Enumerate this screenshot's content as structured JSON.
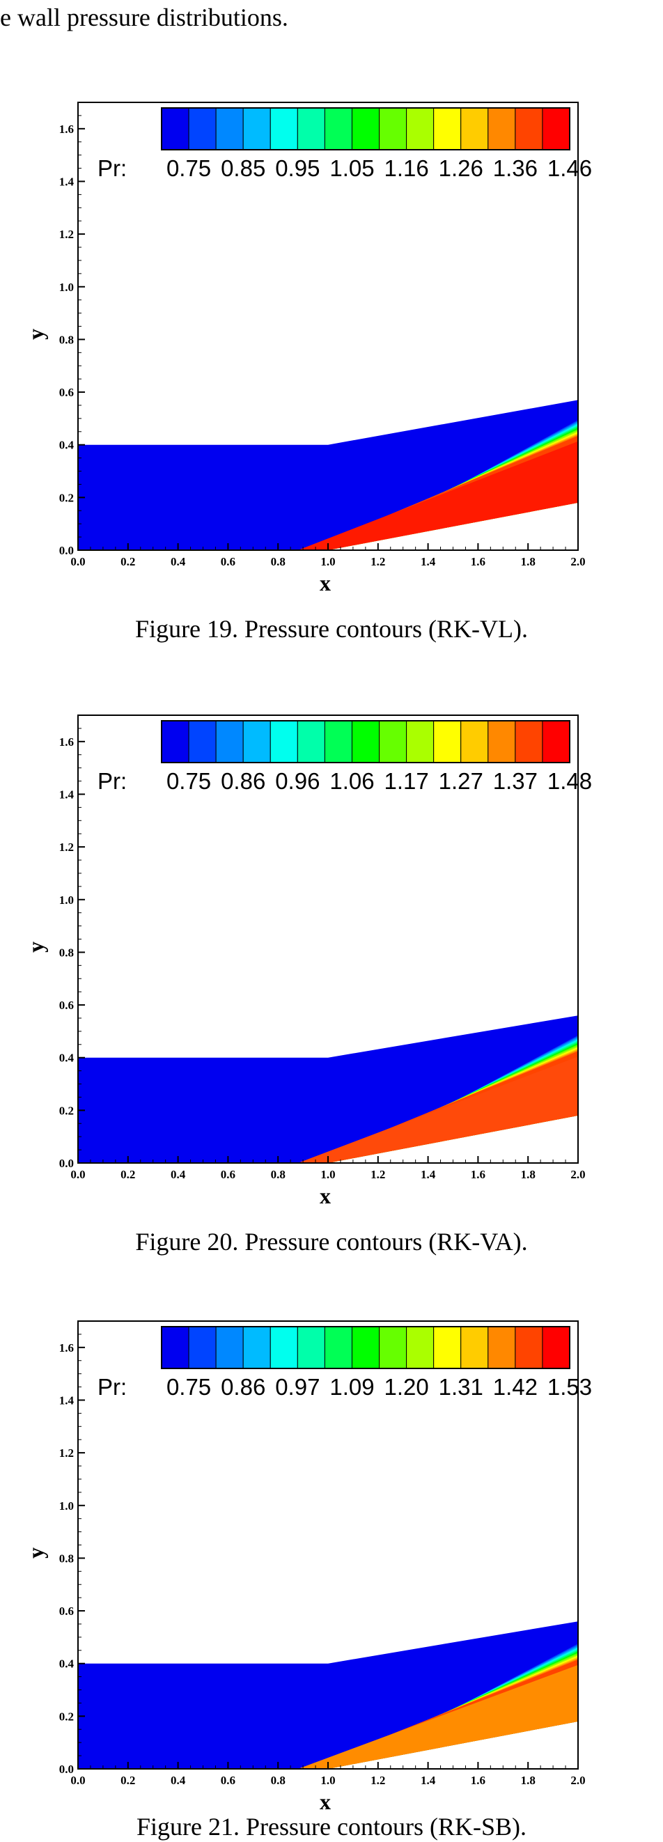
{
  "intro_text": "e wall pressure distributions.",
  "chart_data": [
    {
      "type": "heatmap",
      "caption": "Figure 19. Pressure contours (RK-VL).",
      "xlabel": "x",
      "ylabel": "y",
      "xlim": [
        0.0,
        2.0
      ],
      "ylim": [
        0.0,
        1.7
      ],
      "x_ticks": [
        "0.0",
        "0.2",
        "0.4",
        "0.6",
        "0.8",
        "1.0",
        "1.2",
        "1.4",
        "1.6",
        "1.8",
        "2.0"
      ],
      "y_ticks": [
        "0.0",
        "0.2",
        "0.4",
        "0.6",
        "0.8",
        "1.0",
        "1.2",
        "1.4",
        "1.6"
      ],
      "legend": {
        "label": "Pr:",
        "placement": "top",
        "levels": [
          "0.75",
          "0.85",
          "0.95",
          "1.05",
          "1.16",
          "1.26",
          "1.36",
          "1.46"
        ]
      },
      "colors": [
        "#0000f0",
        "#0044ff",
        "#0088ff",
        "#00bbff",
        "#00ffee",
        "#00ffaa",
        "#00ff55",
        "#00ff00",
        "#66ff00",
        "#aaff00",
        "#ffff00",
        "#ffcc00",
        "#ff8800",
        "#ff4400",
        "#ff0000"
      ],
      "domain": {
        "inlet_height": 0.4,
        "ramp_start_x": 1.0,
        "top_outlet_y": 0.57,
        "bottom_outlet_y": 0.18
      },
      "shock": {
        "start_x": 1.0,
        "outlet_y": 0.52
      },
      "post_shock_color": "#ff1a00",
      "pre_shock_color": "#0000f0"
    },
    {
      "type": "heatmap",
      "caption": "Figure 20. Pressure contours (RK-VA).",
      "xlabel": "x",
      "ylabel": "y",
      "xlim": [
        0.0,
        2.0
      ],
      "ylim": [
        0.0,
        1.7
      ],
      "x_ticks": [
        "0.0",
        "0.2",
        "0.4",
        "0.6",
        "0.8",
        "1.0",
        "1.2",
        "1.4",
        "1.6",
        "1.8",
        "2.0"
      ],
      "y_ticks": [
        "0.0",
        "0.2",
        "0.4",
        "0.6",
        "0.8",
        "1.0",
        "1.2",
        "1.4",
        "1.6"
      ],
      "legend": {
        "label": "Pr:",
        "placement": "top",
        "levels": [
          "0.75",
          "0.86",
          "0.96",
          "1.06",
          "1.17",
          "1.27",
          "1.37",
          "1.48"
        ]
      },
      "colors": [
        "#0000f0",
        "#0044ff",
        "#0088ff",
        "#00bbff",
        "#00ffee",
        "#00ffaa",
        "#00ff55",
        "#00ff00",
        "#66ff00",
        "#aaff00",
        "#ffff00",
        "#ffcc00",
        "#ff8800",
        "#ff4400",
        "#ff0000"
      ],
      "domain": {
        "inlet_height": 0.4,
        "ramp_start_x": 1.0,
        "top_outlet_y": 0.56,
        "bottom_outlet_y": 0.18
      },
      "shock": {
        "start_x": 1.0,
        "outlet_y": 0.51
      },
      "post_shock_color": "#ff4a0a",
      "pre_shock_color": "#0000f0"
    },
    {
      "type": "heatmap",
      "caption": "Figure 21. Pressure contours (RK-SB).",
      "xlabel": "x",
      "ylabel": "y",
      "xlim": [
        0.0,
        2.0
      ],
      "ylim": [
        0.0,
        1.7
      ],
      "x_ticks": [
        "0.0",
        "0.2",
        "0.4",
        "0.6",
        "0.8",
        "1.0",
        "1.2",
        "1.4",
        "1.6",
        "1.8",
        "2.0"
      ],
      "y_ticks": [
        "0.0",
        "0.2",
        "0.4",
        "0.6",
        "0.8",
        "1.0",
        "1.2",
        "1.4",
        "1.6"
      ],
      "legend": {
        "label": "Pr:",
        "placement": "top",
        "levels": [
          "0.75",
          "0.86",
          "0.97",
          "1.09",
          "1.20",
          "1.31",
          "1.42",
          "1.53"
        ]
      },
      "colors": [
        "#0000f0",
        "#0044ff",
        "#0088ff",
        "#00bbff",
        "#00ffee",
        "#00ffaa",
        "#00ff55",
        "#00ff00",
        "#66ff00",
        "#aaff00",
        "#ffff00",
        "#ffcc00",
        "#ff8800",
        "#ff4400",
        "#ff0000"
      ],
      "domain": {
        "inlet_height": 0.4,
        "ramp_start_x": 1.0,
        "top_outlet_y": 0.56,
        "bottom_outlet_y": 0.18
      },
      "shock": {
        "start_x": 1.0,
        "outlet_y": 0.5
      },
      "post_shock_color": "#ff8c00",
      "pre_shock_color": "#0000f0"
    }
  ]
}
